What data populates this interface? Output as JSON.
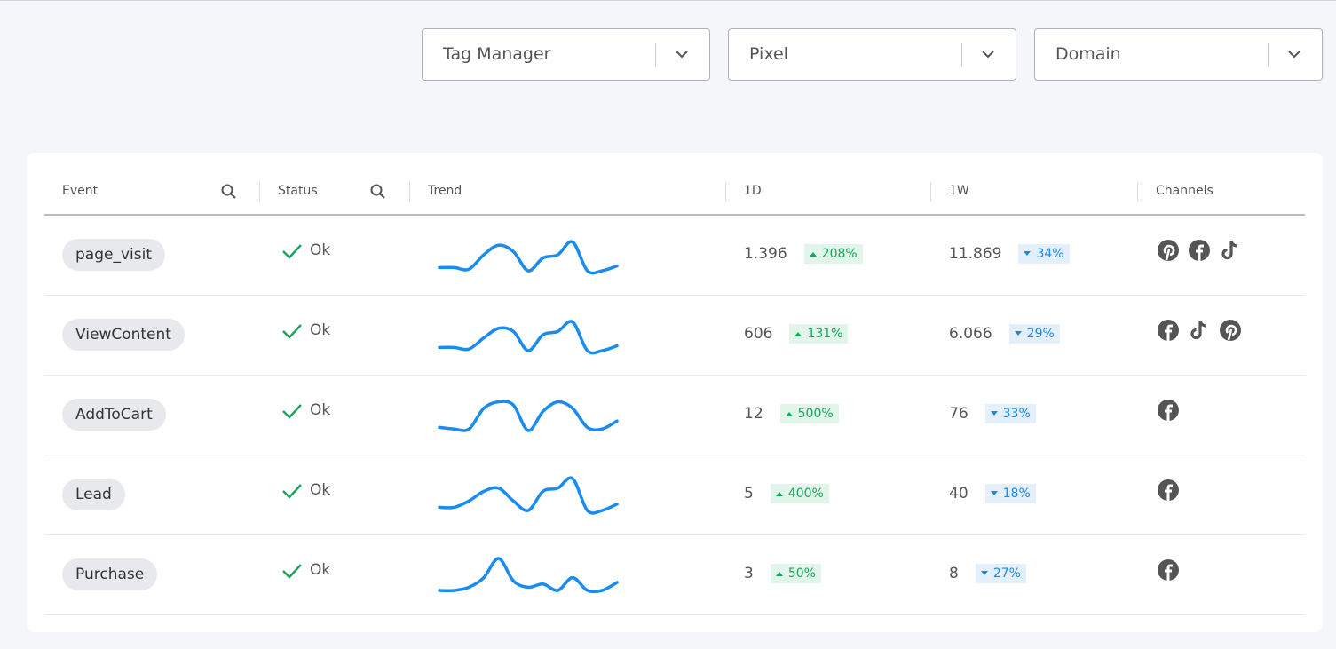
{
  "filters": [
    "Tag Manager",
    "Pixel",
    "Domain"
  ],
  "table": {
    "headers": [
      "Event",
      "Status",
      "Trend",
      "1D",
      "1W",
      "Channels"
    ],
    "rows": [
      {
        "event": "page_visit",
        "status": "Ok",
        "trend": [
          1,
          1,
          0.5,
          5,
          8,
          6,
          0,
          4,
          5,
          9,
          0,
          0,
          1.5
        ],
        "d1": "1.396",
        "d1_change": {
          "label": "208%",
          "direction": "up"
        },
        "w1": "11.869",
        "w1_change": {
          "label": "34%",
          "direction": "down"
        }
      },
      {
        "event": "ViewContent",
        "status": "Ok",
        "trend": [
          1,
          1,
          0.5,
          4,
          7,
          6,
          0,
          5,
          6,
          9,
          0,
          0,
          1.5
        ],
        "d1": "606",
        "d1_change": {
          "label": "131%",
          "direction": "up"
        },
        "w1": "6.066",
        "w1_change": {
          "label": "29%",
          "direction": "down"
        }
      },
      {
        "event": "AddToCart",
        "status": "Ok",
        "trend": [
          1,
          0.5,
          0.5,
          7,
          9,
          8,
          0,
          6,
          9,
          7,
          1,
          0.5,
          3
        ],
        "d1": "12",
        "d1_change": {
          "label": "500%",
          "direction": "up"
        },
        "w1": "76",
        "w1_change": {
          "label": "33%",
          "direction": "down"
        }
      },
      {
        "event": "Lead",
        "status": "Ok",
        "trend": [
          1,
          1,
          3,
          6,
          7,
          3,
          0,
          6,
          7,
          10,
          0,
          0,
          2
        ],
        "d1": "5",
        "d1_change": {
          "label": "400%",
          "direction": "up"
        },
        "w1": "40",
        "w1_change": {
          "label": "18%",
          "direction": "down"
        }
      },
      {
        "event": "Purchase",
        "status": "Ok",
        "trend": [
          0,
          0,
          1,
          4,
          10,
          3,
          1,
          2,
          0,
          4,
          0,
          0,
          2.5
        ],
        "d1": "3",
        "d1_change": {
          "label": "50%",
          "direction": "up"
        },
        "w1": "8",
        "w1_change": {
          "label": "27%",
          "direction": "down"
        }
      }
    ]
  }
}
